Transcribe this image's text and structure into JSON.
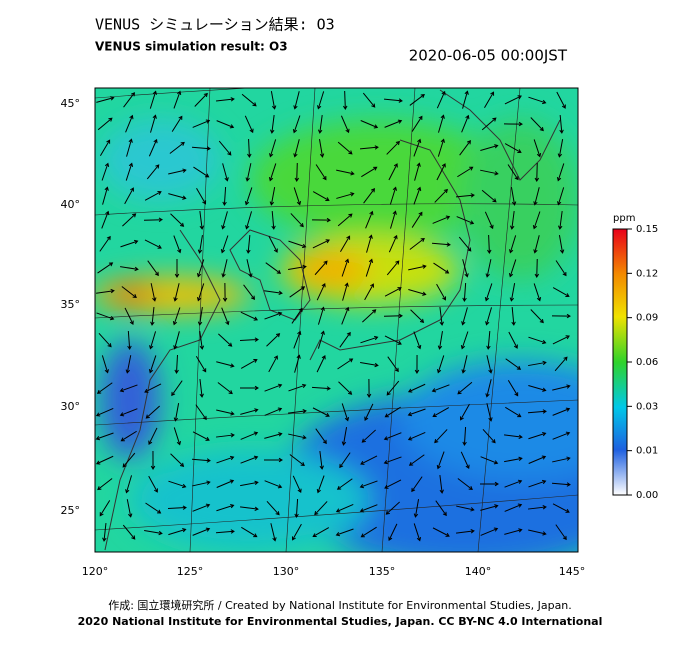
{
  "header": {
    "title": "VENUS シミュレーション結果: O3",
    "subtitle": "VENUS simulation result: O3",
    "timestamp": "2020-06-05 00:00JST"
  },
  "map": {
    "lat_labels": [
      "45°",
      "40°",
      "35°",
      "30°",
      "25°"
    ],
    "lon_labels": [
      "120°",
      "125°",
      "130°",
      "135°",
      "140°",
      "145°"
    ]
  },
  "colorbar": {
    "unit": "ppm",
    "ticks": [
      "0.15",
      "0.12",
      "0.09",
      "0.06",
      "0.03",
      "0.01",
      "0.00"
    ]
  },
  "footer": {
    "credit": "作成: 国立環境研究所 / Created by National Institute for Environmental Studies, Japan.",
    "copyright": "2020 National Institute for Environmental Studies, Japan. CC BY-NC 4.0 International"
  }
}
